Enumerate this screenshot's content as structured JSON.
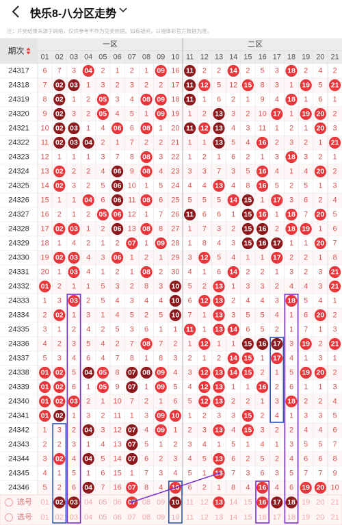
{
  "header": {
    "title": "快乐8-八分区走势",
    "back_icon": "chevron-left-icon",
    "dropdown_icon": "chevron-down-icon"
  },
  "notice": "注：开奖结果来源于网络，仅供参考不作为兑奖依据。如有疑问，以福体彩官方数据为准。",
  "table": {
    "period_header": "期次",
    "zone1_label": "一区",
    "zone2_label": "二区",
    "columns": [
      "01",
      "02",
      "03",
      "04",
      "05",
      "06",
      "07",
      "08",
      "09",
      "10",
      "11",
      "12",
      "13",
      "14",
      "15",
      "16",
      "17",
      "18",
      "19",
      "20",
      "21"
    ],
    "select_label": "选号",
    "colors": {
      "red": "#e8363a",
      "dark_red": "#8c1a1d",
      "miss_text": "#d9534f",
      "grid": "#e3e3e3",
      "header_bg": "#ececec",
      "row_stripe": "#fff7f7",
      "box_blue": "#2b55b0",
      "box_purple": "#7a2fd0"
    },
    "rows": [
      {
        "period": "24317",
        "cells": [
          6,
          7,
          3,
          4,
          2,
          1,
          2,
          1,
          9,
          16,
          11,
          2,
          2,
          14,
          2,
          5,
          3,
          18,
          2,
          4,
          2
        ],
        "hits": [
          4,
          9,
          11,
          14,
          18
        ],
        "darks": [
          11
        ]
      },
      {
        "period": "24318",
        "cells": [
          7,
          2,
          3,
          1,
          3,
          2,
          3,
          2,
          2,
          17,
          11,
          12,
          5,
          12,
          15,
          8,
          3,
          1,
          19,
          5,
          21
        ],
        "hits": [
          2,
          3,
          11,
          12,
          15,
          19,
          21
        ],
        "darks": [
          2,
          3,
          11
        ]
      },
      {
        "period": "24319",
        "cells": [
          8,
          2,
          1,
          2,
          5,
          3,
          4,
          8,
          9,
          18,
          11,
          1,
          6,
          2,
          1,
          9,
          4,
          18,
          1,
          6,
          1
        ],
        "hits": [
          2,
          5,
          8,
          9,
          11,
          18
        ],
        "darks": [
          2,
          11
        ]
      },
      {
        "period": "24320",
        "cells": [
          9,
          2,
          3,
          2,
          5,
          4,
          5,
          1,
          9,
          19,
          1,
          2,
          13,
          3,
          2,
          10,
          17,
          1,
          19,
          20,
          2
        ],
        "hits": [
          2,
          5,
          9,
          13,
          17,
          19,
          20
        ],
        "darks": [
          2,
          13
        ]
      },
      {
        "period": "24321",
        "cells": [
          10,
          2,
          3,
          1,
          4,
          6,
          6,
          8,
          1,
          20,
          11,
          12,
          13,
          4,
          3,
          11,
          1,
          2,
          1,
          20,
          3
        ],
        "hits": [
          2,
          3,
          6,
          8,
          11,
          12,
          13,
          20
        ],
        "darks": [
          2,
          3,
          11,
          13
        ]
      },
      {
        "period": "24322",
        "cells": [
          11,
          2,
          3,
          4,
          2,
          1,
          7,
          2,
          2,
          21,
          1,
          1,
          13,
          5,
          4,
          16,
          2,
          3,
          2,
          1,
          21
        ],
        "hits": [
          2,
          3,
          4,
          13,
          16,
          21
        ],
        "darks": [
          2,
          3,
          4,
          13
        ]
      },
      {
        "period": "24323",
        "cells": [
          12,
          1,
          1,
          1,
          3,
          7,
          8,
          8,
          3,
          22,
          1,
          2,
          1,
          6,
          2,
          1,
          3,
          18,
          3,
          2,
          1
        ],
        "hits": [
          8,
          18
        ],
        "darks": []
      },
      {
        "period": "24324",
        "cells": [
          13,
          2,
          2,
          2,
          4,
          6,
          9,
          8,
          4,
          23,
          3,
          3,
          7,
          3,
          5,
          16,
          4,
          1,
          4,
          20,
          2
        ],
        "hits": [
          2,
          6,
          8,
          16,
          20
        ],
        "darks": [
          6
        ]
      },
      {
        "period": "24325",
        "cells": [
          14,
          2,
          3,
          2,
          5,
          6,
          10,
          1,
          5,
          24,
          4,
          4,
          13,
          4,
          8,
          16,
          5,
          2,
          5,
          1,
          3
        ],
        "hits": [
          2,
          6,
          13,
          16
        ],
        "darks": [
          6
        ]
      },
      {
        "period": "24326",
        "cells": [
          15,
          1,
          1,
          4,
          6,
          6,
          11,
          8,
          6,
          25,
          5,
          5,
          5,
          14,
          15,
          1,
          17,
          3,
          6,
          2,
          4
        ],
        "hits": [
          4,
          6,
          8,
          14,
          15,
          17
        ],
        "darks": [
          6,
          15
        ]
      },
      {
        "period": "24327",
        "cells": [
          16,
          2,
          1,
          2,
          5,
          6,
          12,
          1,
          7,
          26,
          11,
          6,
          6,
          1,
          15,
          16,
          1,
          18,
          7,
          20,
          5
        ],
        "hits": [
          5,
          6,
          11,
          15,
          16,
          18,
          20
        ],
        "darks": [
          11,
          15
        ]
      },
      {
        "period": "24328",
        "cells": [
          17,
          2,
          3,
          1,
          2,
          6,
          13,
          8,
          8,
          27,
          1,
          7,
          3,
          2,
          15,
          16,
          2,
          18,
          19,
          1,
          6
        ],
        "hits": [
          2,
          3,
          6,
          8,
          15,
          16,
          18,
          19
        ],
        "darks": [
          6,
          15,
          16
        ]
      },
      {
        "period": "24329",
        "cells": [
          18,
          1,
          4,
          2,
          1,
          2,
          7,
          1,
          9,
          28,
          1,
          8,
          4,
          3,
          15,
          16,
          17,
          1,
          1,
          20,
          7
        ],
        "hits": [
          7,
          9,
          15,
          16,
          17,
          20
        ],
        "darks": [
          15,
          16,
          17
        ]
      },
      {
        "period": "24330",
        "cells": [
          19,
          2,
          3,
          4,
          3,
          6,
          1,
          2,
          1,
          29,
          3,
          12,
          5,
          4,
          1,
          1,
          17,
          2,
          2,
          1,
          8
        ],
        "hits": [
          2,
          3,
          6,
          12,
          17
        ],
        "darks": []
      },
      {
        "period": "24331",
        "cells": [
          20,
          1,
          3,
          4,
          1,
          2,
          1,
          8,
          2,
          30,
          4,
          1,
          6,
          14,
          2,
          2,
          1,
          3,
          2,
          3,
          21
        ],
        "hits": [
          3,
          8,
          14,
          21
        ],
        "darks": []
      },
      {
        "period": "24332",
        "cells": [
          1,
          2,
          1,
          1,
          5,
          3,
          2,
          8,
          3,
          10,
          5,
          2,
          13,
          1,
          3,
          3,
          2,
          4,
          4,
          3,
          21
        ],
        "hits": [
          1,
          10,
          13,
          21
        ],
        "darks": [
          10
        ]
      },
      {
        "period": "24333",
        "cells": [
          1,
          3,
          3,
          2,
          5,
          4,
          3,
          4,
          4,
          10,
          6,
          12,
          13,
          2,
          4,
          4,
          3,
          18,
          5,
          4,
          1
        ],
        "hits": [
          3,
          10,
          12,
          13,
          18
        ],
        "darks": [
          10
        ]
      },
      {
        "period": "24334",
        "cells": [
          2,
          2,
          1,
          3,
          1,
          4,
          5,
          2,
          5,
          10,
          7,
          1,
          13,
          3,
          5,
          5,
          4,
          1,
          6,
          20,
          2
        ],
        "hits": [
          2,
          10,
          13,
          20
        ],
        "darks": [
          10
        ]
      },
      {
        "period": "24335",
        "cells": [
          3,
          1,
          2,
          4,
          2,
          5,
          3,
          6,
          1,
          1,
          11,
          1,
          13,
          14,
          6,
          5,
          2,
          1,
          7,
          1,
          3
        ],
        "hits": [
          11,
          13,
          14
        ],
        "darks": []
      },
      {
        "period": "24336",
        "cells": [
          4,
          2,
          3,
          5,
          4,
          2,
          7,
          8,
          7,
          2,
          1,
          12,
          1,
          1,
          15,
          16,
          17,
          3,
          19,
          2,
          21
        ],
        "hits": [
          8,
          12,
          15,
          16,
          17,
          19,
          21
        ],
        "darks": [
          15,
          16,
          17
        ]
      },
      {
        "period": "24337",
        "cells": [
          5,
          3,
          4,
          6,
          4,
          7,
          8,
          1,
          8,
          3,
          2,
          1,
          2,
          14,
          15,
          1,
          17,
          4,
          1,
          3,
          1
        ],
        "hits": [
          14,
          15,
          17
        ],
        "darks": []
      },
      {
        "period": "24338",
        "cells": [
          1,
          2,
          5,
          4,
          5,
          8,
          7,
          8,
          9,
          4,
          3,
          12,
          13,
          14,
          15,
          2,
          1,
          5,
          19,
          20,
          2
        ],
        "hits": [
          1,
          2,
          4,
          5,
          7,
          8,
          9,
          12,
          13,
          14,
          15,
          19,
          20
        ],
        "darks": [
          4,
          7,
          8
        ]
      },
      {
        "period": "24339",
        "cells": [
          1,
          2,
          6,
          1,
          5,
          9,
          7,
          1,
          9,
          5,
          4,
          12,
          13,
          1,
          1,
          16,
          2,
          6,
          1,
          1,
          3
        ],
        "hits": [
          1,
          2,
          5,
          7,
          9,
          12,
          13,
          16
        ],
        "darks": [
          7
        ]
      },
      {
        "period": "24340",
        "cells": [
          1,
          2,
          3,
          2,
          1,
          10,
          7,
          2,
          1,
          6,
          5,
          12,
          13,
          2,
          2,
          1,
          3,
          18,
          2,
          2,
          4
        ],
        "hits": [
          1,
          2,
          3,
          12,
          13,
          18
        ],
        "darks": []
      },
      {
        "period": "24341",
        "cells": [
          1,
          2,
          1,
          3,
          2,
          11,
          1,
          3,
          9,
          10,
          1,
          2,
          3,
          3,
          15,
          2,
          4,
          1,
          3,
          3,
          5
        ],
        "hits": [
          1,
          2,
          9,
          10,
          15
        ],
        "darks": [
          2
        ]
      },
      {
        "period": "24342",
        "cells": [
          1,
          3,
          2,
          4,
          3,
          12,
          7,
          4,
          9,
          1,
          2,
          3,
          13,
          4,
          15,
          3,
          2,
          2,
          4,
          4,
          6
        ],
        "hits": [
          4,
          7,
          9,
          13,
          15
        ],
        "darks": [
          4,
          7
        ]
      },
      {
        "period": "24343",
        "cells": [
          2,
          2,
          3,
          1,
          4,
          13,
          7,
          5,
          1,
          2,
          3,
          4,
          1,
          5,
          1,
          4,
          1,
          3,
          5,
          5,
          7
        ],
        "hits": [
          7
        ],
        "darks": [
          7
        ]
      },
      {
        "period": "24344",
        "cells": [
          3,
          2,
          4,
          4,
          5,
          14,
          7,
          6,
          2,
          3,
          4,
          5,
          13,
          6,
          2,
          5,
          2,
          4,
          6,
          6,
          8
        ],
        "hits": [
          2,
          4,
          7,
          13
        ],
        "darks": [
          4,
          7
        ]
      },
      {
        "period": "24345",
        "cells": [
          4,
          1,
          5,
          1,
          6,
          15,
          1,
          7,
          3,
          4,
          5,
          1,
          13,
          7,
          3,
          6,
          3,
          5,
          7,
          7,
          9
        ],
        "hits": [
          13
        ],
        "darks": []
      },
      {
        "period": "24346",
        "cells": [
          5,
          2,
          6,
          4,
          7,
          16,
          7,
          8,
          4,
          10,
          6,
          2,
          1,
          8,
          4,
          16,
          4,
          6,
          19,
          20,
          10
        ],
        "hits": [
          4,
          7,
          10,
          16,
          19,
          20
        ],
        "darks": [
          4
        ]
      }
    ],
    "selected": [
      2,
      3,
      7,
      10,
      13,
      16,
      17,
      18
    ],
    "selected_darks": [
      2,
      3,
      10,
      17,
      18
    ]
  }
}
